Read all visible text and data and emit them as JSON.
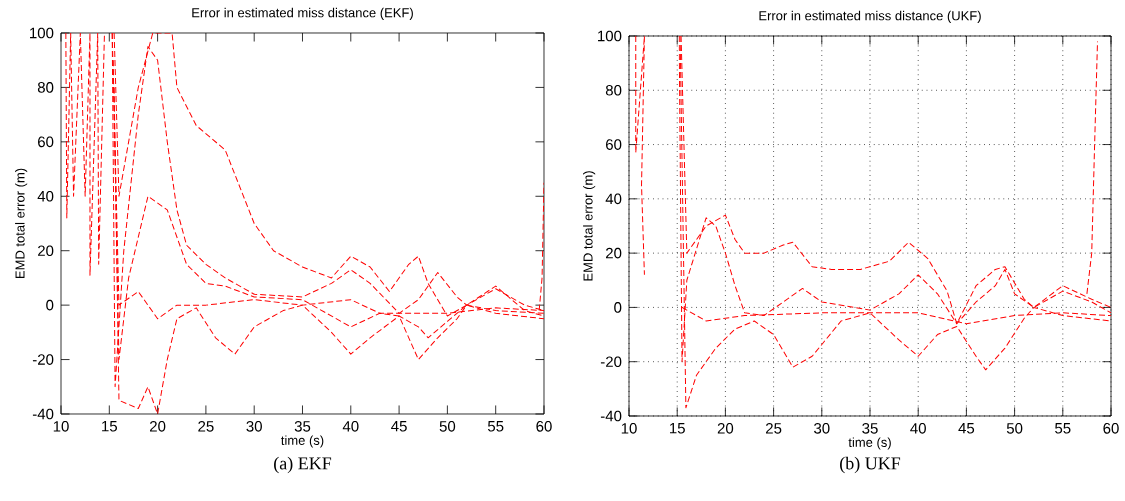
{
  "chart_data": [
    {
      "type": "line",
      "title": "Error in estimated miss distance (EKF)",
      "xlabel": "time (s)",
      "ylabel": "EMD total error (m)",
      "annotations": [
        "(a)  EKF"
      ],
      "xlim": [
        10,
        60
      ],
      "ylim": [
        -40,
        100
      ],
      "xticks": [
        10,
        15,
        20,
        25,
        30,
        35,
        40,
        45,
        50,
        55,
        60
      ],
      "yticks": [
        -40,
        -20,
        0,
        20,
        40,
        60,
        80,
        100
      ],
      "grid": false,
      "marker": "none",
      "line_style": "dashed",
      "series": [
        {
          "color": "#ff0000",
          "x": [
            15.3,
            15.6,
            16.5,
            18,
            19,
            20,
            21,
            22,
            23,
            25,
            27,
            30,
            35,
            38,
            40,
            42,
            45,
            47,
            49,
            51,
            52,
            55,
            58,
            60
          ],
          "values": [
            100,
            -30,
            20,
            70,
            95,
            90,
            60,
            35,
            22,
            15,
            10,
            4,
            3,
            8,
            13,
            8,
            -3,
            2,
            12,
            3,
            0,
            6,
            0,
            -2
          ]
        },
        {
          "color": "#ff0000",
          "x": [
            15.5,
            16,
            18,
            19.5,
            21.5,
            22,
            24,
            27,
            28,
            30,
            32,
            35,
            38,
            40,
            42,
            44,
            46,
            47,
            48,
            50,
            52,
            55,
            58,
            60
          ],
          "values": [
            100,
            40,
            80,
            100,
            100,
            80,
            66,
            57,
            48,
            30,
            20,
            14,
            10,
            18,
            14,
            5,
            15,
            18,
            8,
            -4,
            0,
            7,
            -2,
            -4
          ]
        },
        {
          "color": "#ff0000",
          "x": [
            15.4,
            16,
            17,
            19,
            21,
            23,
            25,
            27,
            30,
            35,
            40,
            43,
            45,
            47,
            49,
            51,
            52,
            55,
            60
          ],
          "values": [
            90,
            -20,
            10,
            40,
            35,
            15,
            8,
            7,
            3,
            2,
            -8,
            -3,
            -4,
            -20,
            -12,
            -5,
            0,
            -2,
            -3
          ]
        },
        {
          "color": "#ff0000",
          "x": [
            15.5,
            16,
            18,
            19,
            20,
            21,
            22,
            24,
            26,
            28,
            30,
            33,
            35,
            38,
            40,
            42,
            45,
            47,
            48,
            50,
            52,
            55,
            60
          ],
          "values": [
            80,
            -35,
            -38,
            -30,
            -40,
            -20,
            -5,
            -1,
            -12,
            -18,
            -8,
            -2,
            0,
            -10,
            -18,
            -12,
            -4,
            -8,
            -12,
            -6,
            0,
            -3,
            -5
          ]
        },
        {
          "color": "#ff0000",
          "x": [
            15.3,
            16,
            18,
            20,
            22,
            25,
            30,
            35,
            40,
            43,
            45,
            50,
            55,
            60
          ],
          "values": [
            100,
            0,
            5,
            -5,
            0,
            0,
            2,
            0,
            2,
            -3,
            -3,
            -3,
            -1,
            -2
          ]
        },
        {
          "color": "#ff0000",
          "x": [
            10.5,
            10.6,
            11,
            11.3,
            12,
            12.5,
            13,
            13,
            13.8,
            13.9,
            14.5
          ],
          "values": [
            100,
            32,
            100,
            40,
            100,
            40,
            100,
            11,
            100,
            15,
            100
          ]
        },
        {
          "color": "#ff0000",
          "x": [
            59.5,
            59.8,
            60
          ],
          "values": [
            -2,
            10,
            45
          ]
        }
      ]
    },
    {
      "type": "line",
      "title": "Error in estimated miss distance (UKF)",
      "xlabel": "time (s)",
      "ylabel": "EMD total error (m)",
      "annotations": [
        "(b)  UKF"
      ],
      "xlim": [
        10,
        60
      ],
      "ylim": [
        -40,
        100
      ],
      "xticks": [
        10,
        15,
        20,
        25,
        30,
        35,
        40,
        45,
        50,
        55,
        60
      ],
      "yticks": [
        -40,
        -20,
        0,
        20,
        40,
        60,
        80,
        100
      ],
      "grid": true,
      "marker": "none",
      "line_style": "dashed",
      "series": [
        {
          "color": "#ff0000",
          "x": [
            10.7,
            10.7,
            11.6,
            11.3,
            11.6
          ],
          "values": [
            100,
            57,
            100,
            45,
            12
          ]
        },
        {
          "color": "#ff0000",
          "x": [
            15.2,
            15.5,
            16,
            18,
            19,
            20,
            21,
            22,
            24,
            26,
            28,
            30,
            35,
            38,
            40,
            42,
            44,
            46,
            48,
            49,
            50,
            52,
            55,
            58,
            60
          ],
          "values": [
            100,
            -20,
            10,
            33,
            30,
            20,
            8,
            -2,
            -3,
            2,
            7,
            2,
            -1,
            5,
            12,
            5,
            -6,
            2,
            8,
            14,
            5,
            0,
            6,
            2,
            -2
          ]
        },
        {
          "color": "#ff0000",
          "x": [
            15.3,
            15.9,
            17,
            19,
            21,
            23,
            25,
            27,
            29,
            32,
            35,
            38,
            40,
            42,
            44,
            46,
            47,
            49,
            51,
            52,
            55,
            60
          ],
          "values": [
            100,
            -37,
            -25,
            -15,
            -8,
            -5,
            -10,
            -22,
            -18,
            -5,
            -2,
            -12,
            -18,
            -10,
            -7,
            -18,
            -23,
            -15,
            -4,
            0,
            -3,
            -5
          ]
        },
        {
          "color": "#ff0000",
          "x": [
            15.4,
            16,
            18,
            20,
            21,
            22,
            24,
            26,
            27,
            29,
            31,
            34,
            37,
            39,
            41,
            43,
            44,
            46,
            48,
            49,
            51,
            52,
            55,
            58,
            60
          ],
          "values": [
            100,
            20,
            30,
            34,
            25,
            20,
            20,
            23,
            24,
            15,
            14,
            14,
            17,
            24,
            18,
            6,
            -6,
            8,
            14,
            15,
            3,
            0,
            8,
            3,
            0
          ]
        },
        {
          "color": "#ff0000",
          "x": [
            15.5,
            18,
            22,
            30,
            35,
            40,
            45,
            50,
            55,
            60
          ],
          "values": [
            0,
            -5,
            -3,
            -2,
            -2,
            -2,
            -6,
            -3,
            -2,
            -3
          ]
        },
        {
          "color": "#ff0000",
          "x": [
            57.5,
            58,
            58.3,
            58.6
          ],
          "values": [
            5,
            20,
            60,
            98
          ]
        }
      ]
    }
  ]
}
